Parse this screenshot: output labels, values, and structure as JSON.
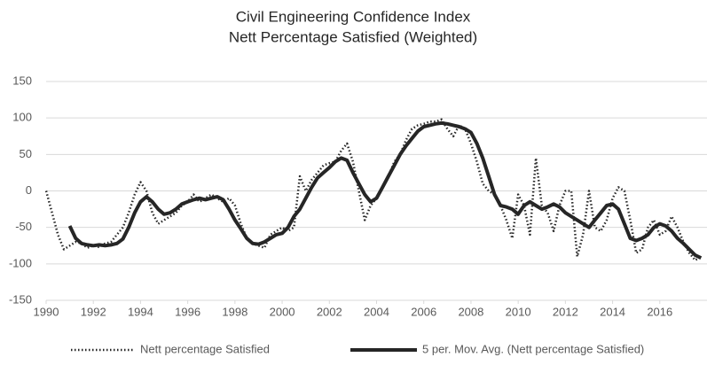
{
  "chart_data": {
    "type": "line",
    "title": "Civil Engineering Confidence Index",
    "subtitle": "Nett Percentage Satisfied  (Weighted)",
    "x": [
      1990,
      1990.25,
      1990.5,
      1990.75,
      1991,
      1991.25,
      1991.5,
      1991.75,
      1992,
      1992.25,
      1992.5,
      1992.75,
      1993,
      1993.25,
      1993.5,
      1993.75,
      1994,
      1994.25,
      1994.5,
      1994.75,
      1995,
      1995.25,
      1995.5,
      1995.75,
      1996,
      1996.25,
      1996.5,
      1996.75,
      1997,
      1997.25,
      1997.5,
      1997.75,
      1998,
      1998.25,
      1998.5,
      1998.75,
      1999,
      1999.25,
      1999.5,
      1999.75,
      2000,
      2000.25,
      2000.5,
      2000.75,
      2001,
      2001.25,
      2001.5,
      2001.75,
      2002,
      2002.25,
      2002.5,
      2002.75,
      2003,
      2003.25,
      2003.5,
      2003.75,
      2004,
      2004.25,
      2004.5,
      2004.75,
      2005,
      2005.25,
      2005.5,
      2005.75,
      2006,
      2006.25,
      2006.5,
      2006.75,
      2007,
      2007.25,
      2007.5,
      2007.75,
      2008,
      2008.25,
      2008.5,
      2008.75,
      2009,
      2009.25,
      2009.5,
      2009.75,
      2010,
      2010.25,
      2010.5,
      2010.75,
      2011,
      2011.25,
      2011.5,
      2011.75,
      2012,
      2012.25,
      2012.5,
      2012.75,
      2013,
      2013.25,
      2013.5,
      2013.75,
      2014,
      2014.25,
      2014.5,
      2014.75,
      2015,
      2015.25,
      2015.5,
      2015.75,
      2016,
      2016.25,
      2016.5,
      2016.75,
      2017,
      2017.25,
      2017.5,
      2017.75
    ],
    "series": [
      {
        "name": "Nett percentage Satisfied",
        "color": "#262626",
        "style": "dotted",
        "values": [
          0,
          -30,
          -60,
          -80,
          -75,
          -70,
          -72,
          -78,
          -75,
          -77,
          -72,
          -70,
          -60,
          -50,
          -30,
          -5,
          12,
          0,
          -30,
          -45,
          -40,
          -35,
          -30,
          -20,
          -15,
          -5,
          -15,
          -10,
          -5,
          -10,
          -15,
          -10,
          -20,
          -45,
          -65,
          -72,
          -75,
          -78,
          -60,
          -55,
          -50,
          -55,
          -50,
          20,
          0,
          15,
          25,
          35,
          38,
          40,
          55,
          65,
          40,
          0,
          -40,
          -20,
          -10,
          5,
          20,
          40,
          50,
          70,
          85,
          90,
          92,
          95,
          95,
          98,
          85,
          75,
          90,
          85,
          65,
          40,
          10,
          0,
          -5,
          -20,
          -40,
          -65,
          -5,
          -20,
          -60,
          45,
          -20,
          -30,
          -55,
          -20,
          0,
          0,
          -90,
          -60,
          0,
          -50,
          -55,
          -40,
          -10,
          5,
          0,
          -40,
          -85,
          -80,
          -50,
          -40,
          -60,
          -55,
          -35,
          -50,
          -70,
          -85,
          -95,
          -90
        ]
      },
      {
        "name": "5 per. Mov. Avg. (Nett percentage Satisfied)",
        "color": "#262626",
        "style": "solid",
        "values": [
          null,
          null,
          null,
          null,
          -48,
          -65,
          -72,
          -74,
          -75,
          -74,
          -75,
          -74,
          -72,
          -66,
          -50,
          -30,
          -15,
          -8,
          -15,
          -25,
          -32,
          -30,
          -25,
          -18,
          -15,
          -12,
          -10,
          -12,
          -10,
          -8,
          -12,
          -25,
          -40,
          -52,
          -65,
          -72,
          -73,
          -70,
          -65,
          -60,
          -58,
          -50,
          -35,
          -25,
          -10,
          5,
          18,
          25,
          32,
          40,
          45,
          42,
          25,
          10,
          -5,
          -15,
          -10,
          5,
          20,
          35,
          50,
          62,
          72,
          82,
          88,
          90,
          92,
          93,
          92,
          90,
          88,
          85,
          80,
          65,
          45,
          20,
          -5,
          -20,
          -22,
          -25,
          -32,
          -20,
          -15,
          -20,
          -25,
          -22,
          -18,
          -22,
          -30,
          -35,
          -40,
          -45,
          -50,
          -40,
          -30,
          -20,
          -18,
          -25,
          -45,
          -65,
          -68,
          -65,
          -60,
          -50,
          -45,
          -48,
          -55,
          -65,
          -72,
          -80,
          -88,
          -92
        ]
      }
    ],
    "xlim": [
      1990,
      2018
    ],
    "xticks": [
      1990,
      1992,
      1994,
      1996,
      1998,
      2000,
      2002,
      2004,
      2006,
      2008,
      2010,
      2012,
      2014,
      2016
    ],
    "ylim": [
      -150,
      150
    ],
    "yticks": [
      -150,
      -100,
      -50,
      0,
      50,
      100,
      150
    ],
    "grid": true,
    "legend": "bottom"
  }
}
